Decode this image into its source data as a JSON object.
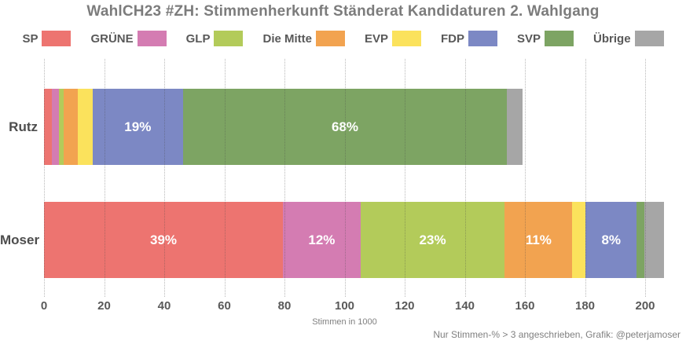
{
  "chart_data": {
    "type": "bar",
    "orientation": "horizontal",
    "stacked": true,
    "title": "WahlCH23 #ZH: Stimmenherkunft Ständerat Kandidaturen 2. Wahlgang",
    "xlabel": "Stimmen in 1000",
    "caption": "Nur Stimmen-% > 3 angeschrieben, Grafik: @peterjamoser",
    "xlim": [
      0,
      200
    ],
    "xticks": [
      0,
      20,
      40,
      60,
      80,
      100,
      120,
      140,
      160,
      180,
      200
    ],
    "grid": "dotted-vertical",
    "legend_position": "top",
    "categories": [
      "Rutz",
      "Moser"
    ],
    "series": [
      {
        "name": "SP",
        "color": "#ED7470",
        "values": [
          2.7,
          79.5
        ],
        "labels": [
          "",
          "39%"
        ]
      },
      {
        "name": "GRÜNE",
        "color": "#D47CB2",
        "values": [
          2.3,
          25.8
        ],
        "labels": [
          "",
          "12%"
        ]
      },
      {
        "name": "GLP",
        "color": "#B3CB5A",
        "values": [
          1.5,
          48.0
        ],
        "labels": [
          "",
          "23%"
        ]
      },
      {
        "name": "Die Mitte",
        "color": "#F2A350",
        "values": [
          4.8,
          22.5
        ],
        "labels": [
          "",
          "11%"
        ]
      },
      {
        "name": "EVP",
        "color": "#FBE25C",
        "values": [
          4.9,
          4.4
        ],
        "labels": [
          "",
          ""
        ]
      },
      {
        "name": "FDP",
        "color": "#7C88C4",
        "values": [
          30.0,
          17.0
        ],
        "labels": [
          "19%",
          "8%"
        ]
      },
      {
        "name": "SVP",
        "color": "#7DA463",
        "values": [
          107.9,
          2.6
        ],
        "labels": [
          "68%",
          ""
        ]
      },
      {
        "name": "Übrige",
        "color": "#A6A6A6",
        "values": [
          5.0,
          6.5
        ],
        "labels": [
          "",
          ""
        ]
      }
    ]
  }
}
